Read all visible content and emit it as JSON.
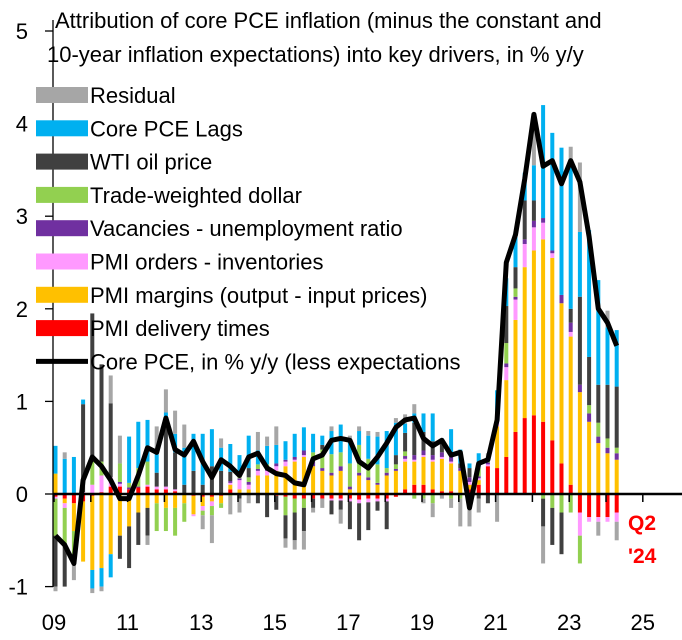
{
  "chart_data": {
    "type": "bar",
    "stacked": true,
    "title": "Attribution of core PCE inflation (minus the constant and 10-year inflation expectations) into key drivers, in % y/y",
    "title_lines": [
      "Attribution of core PCE inflation (minus the constant and",
      "10-year inflation expectations) into key drivers, in % y/y"
    ],
    "xlabel": "",
    "ylabel": "",
    "ylim": [
      -1,
      5
    ],
    "yticks": [
      "-1",
      "0",
      "1",
      "2",
      "3",
      "4",
      "5"
    ],
    "xlim": [
      2009,
      2026
    ],
    "xticks": [
      "09",
      "11",
      "13",
      "15",
      "17",
      "19",
      "21",
      "23",
      "25"
    ],
    "frequency": "quarterly",
    "start": "2009Q1",
    "end": "2024Q2",
    "grid": false,
    "legend_position": "top-left",
    "annotation": {
      "line1": "Q2",
      "line2": "'24",
      "color": "#FF0000"
    },
    "legend": [
      {
        "name": "Residual",
        "color": "#A6A6A6"
      },
      {
        "name": "Core PCE Lags",
        "color": "#00B0F0"
      },
      {
        "name": "WTI oil price",
        "color": "#404040"
      },
      {
        "name": "Trade-weighted dollar",
        "color": "#92D050"
      },
      {
        "name": "Vacancies - unemployment ratio",
        "color": "#7030A0"
      },
      {
        "name": "PMI orders - inventories",
        "color": "#FF99FF"
      },
      {
        "name": "PMI margins (output - input prices)",
        "color": "#FFC000"
      },
      {
        "name": "PMI delivery times",
        "color": "#FF0000"
      },
      {
        "name": "Core PCE, in % y/y (less expectations",
        "color": "#000000"
      }
    ],
    "stack_order": [
      "PMI delivery times",
      "PMI margins (output - input prices)",
      "PMI orders - inventories",
      "Vacancies - unemployment ratio",
      "Trade-weighted dollar",
      "WTI oil price",
      "Core PCE Lags",
      "Residual"
    ],
    "contributions_by_quarter": [
      [
        -0.03,
        0.22,
        -0.02,
        0,
        -0.4,
        -0.55,
        0.3,
        -0.05
      ],
      [
        -0.05,
        -0.05,
        -0.05,
        0,
        -0.4,
        -0.45,
        0.38,
        0.07
      ],
      [
        -0.1,
        -0.3,
        0,
        0,
        -0.25,
        -0.1,
        0.4,
        -0.18
      ],
      [
        -0.08,
        -0.65,
        0.02,
        0,
        0,
        0.95,
        0.05,
        0
      ],
      [
        -0.02,
        -0.8,
        0.1,
        0,
        0.3,
        1.55,
        -0.2,
        -0.05
      ],
      [
        0.02,
        -0.8,
        0.18,
        0,
        0.15,
        1.05,
        -0.2,
        -0.05
      ],
      [
        0.08,
        -0.65,
        0.1,
        0,
        0,
        0.8,
        -0.25,
        0.3
      ],
      [
        0.08,
        -0.45,
        0.03,
        0.02,
        0.2,
        -0.25,
        0,
        0.3
      ],
      [
        0.05,
        -0.35,
        0,
        0.02,
        0.05,
        -0.45,
        0.5,
        0
      ],
      [
        0.07,
        -0.2,
        0,
        0.01,
        0.2,
        -0.35,
        0.5,
        0
      ],
      [
        0.08,
        -0.15,
        0.02,
        0,
        0.25,
        -0.3,
        0.45,
        -0.1
      ],
      [
        0.05,
        -0.1,
        0.03,
        0,
        -0.3,
        0.15,
        0.2,
        0.3
      ],
      [
        0.05,
        -0.15,
        0.03,
        0,
        -0.25,
        0.75,
        0.05,
        0.25
      ],
      [
        0.03,
        -0.15,
        0.02,
        0,
        -0.3,
        0.4,
        0.2,
        0.25
      ],
      [
        0,
        -0.1,
        0,
        0,
        -0.2,
        0.1,
        0.4,
        0.25
      ],
      [
        -0.02,
        -0.2,
        -0.02,
        0,
        0,
        0.25,
        0.4,
        0
      ],
      [
        -0.03,
        -0.1,
        -0.05,
        0,
        -0.05,
        0.1,
        0.55,
        -0.15
      ],
      [
        -0.03,
        -0.05,
        -0.05,
        0,
        -0.1,
        0.3,
        0.4,
        -0.3
      ],
      [
        -0.02,
        -0.08,
        0,
        0,
        -0.05,
        0.25,
        0.25,
        0.1
      ],
      [
        0.05,
        0.05,
        0.02,
        0.02,
        -0.02,
        0.1,
        0.3,
        -0.2
      ],
      [
        0,
        0.05,
        0.1,
        0.02,
        0.05,
        -0.05,
        0.2,
        -0.15
      ],
      [
        0,
        0.05,
        0.05,
        0.03,
        0.05,
        0.1,
        0.35,
        -0.1
      ],
      [
        0,
        0.2,
        0.05,
        0.02,
        0.05,
        -0.1,
        0.15,
        0.2
      ],
      [
        0,
        0.2,
        0.05,
        0.02,
        0.05,
        -0.25,
        0.2,
        0.1
      ],
      [
        -0.02,
        0.25,
        0.05,
        0.03,
        0,
        -0.15,
        0.2,
        0.2
      ],
      [
        -0.03,
        0.3,
        0.05,
        0.02,
        -0.2,
        -0.25,
        0.2,
        -0.1
      ],
      [
        -0.05,
        0.35,
        0.02,
        0.03,
        -0.15,
        -0.3,
        0.25,
        -0.1
      ],
      [
        -0.05,
        0.4,
        0.02,
        0.05,
        -0.1,
        -0.25,
        0.25,
        -0.2
      ],
      [
        -0.05,
        0.3,
        0,
        0.05,
        0.1,
        -0.1,
        0.2,
        -0.05
      ],
      [
        -0.05,
        0.25,
        0,
        0.03,
        0.2,
        0.05,
        0.1,
        -0.1
      ],
      [
        -0.05,
        0.2,
        -0.02,
        0.03,
        0.2,
        -0.15,
        0.25,
        0.05
      ],
      [
        -0.05,
        0.25,
        -0.02,
        0.05,
        0.15,
        -0.1,
        0.3,
        -0.15
      ],
      [
        -0.05,
        0.05,
        -0.03,
        0.03,
        0.25,
        -0.3,
        0.25,
        0.05
      ],
      [
        -0.06,
        0.2,
        -0.04,
        0.03,
        0.3,
        -0.4,
        0.15,
        0.05
      ],
      [
        -0.05,
        0.15,
        -0.04,
        0.03,
        0.2,
        -0.3,
        0.25,
        0.05
      ],
      [
        -0.05,
        0.1,
        -0.03,
        0.02,
        0.2,
        -0.1,
        0.3,
        0.05
      ],
      [
        -0.05,
        0.2,
        -0.03,
        0.03,
        0.05,
        -0.3,
        0.4,
        0
      ],
      [
        -0.03,
        0.25,
        0,
        0.02,
        0.05,
        0.1,
        0.35,
        0.05
      ],
      [
        0.05,
        0.3,
        0.03,
        0.03,
        0.05,
        0.2,
        0.1,
        0.1
      ],
      [
        0.1,
        0.25,
        0.02,
        0.05,
        -0.05,
        0.35,
        0.1,
        0.1
      ],
      [
        0.1,
        0.3,
        0.02,
        0.05,
        -0.05,
        0.2,
        0.2,
        -0.05
      ],
      [
        0.05,
        0.3,
        0.02,
        0.05,
        -0.1,
        0.15,
        0.3,
        -0.15
      ],
      [
        0.03,
        0.35,
        0.02,
        0.05,
        0,
        0.1,
        0.05,
        -0.05
      ],
      [
        0.03,
        0.3,
        0.02,
        0.05,
        -0.05,
        0.05,
        0.25,
        -0.1
      ],
      [
        0,
        0.25,
        0,
        0.03,
        -0.05,
        0.05,
        0.15,
        -0.3
      ],
      [
        0.05,
        0.05,
        0.03,
        0.05,
        -0.05,
        0.1,
        0.05,
        -0.3
      ],
      [
        0.1,
        0.05,
        0.02,
        0.02,
        0.1,
        -0.05,
        0.15,
        -0.15
      ],
      [
        0.3,
        0,
        0.02,
        0.02,
        0.05,
        -0.1,
        0,
        0.05
      ],
      [
        0.28,
        0.45,
        0.05,
        0.04,
        0.05,
        0,
        0.25,
        -0.3
      ],
      [
        0.4,
        0.83,
        0.14,
        0.04,
        0.22,
        0.4,
        0.3,
        0
      ],
      [
        0.67,
        1.21,
        0.22,
        0.03,
        0.09,
        0.23,
        0.35,
        0
      ],
      [
        0.82,
        1.63,
        0.25,
        0.05,
        0,
        0.42,
        0.3,
        0
      ],
      [
        0.85,
        1.78,
        0.25,
        0.07,
        0,
        0.22,
        0.38,
        0.57
      ],
      [
        0.78,
        1.97,
        0.18,
        0.05,
        -0.05,
        -0.3,
        1.22,
        -0.4
      ],
      [
        0.58,
        1.97,
        0.05,
        0.03,
        -0.15,
        -0.4,
        1.27,
        0
      ],
      [
        0.33,
        1.73,
        0,
        0.09,
        -0.2,
        -0.45,
        1.59,
        0
      ],
      [
        0.1,
        1.6,
        0.05,
        0.1,
        -0.2,
        0.15,
        1.55,
        0.2
      ],
      [
        -0.2,
        1.1,
        -0.25,
        0.08,
        -0.3,
        0.95,
        0.7,
        0.75
      ],
      [
        -0.25,
        0.78,
        -0.05,
        0.09,
        0.09,
        0.52,
        1.37,
        0
      ],
      [
        -0.25,
        0.55,
        -0.05,
        0.07,
        0.15,
        0.41,
        1.13,
        -0.15
      ],
      [
        -0.25,
        0.44,
        -0.05,
        0.06,
        0.1,
        0.58,
        0.62,
        0.18
      ],
      [
        -0.2,
        0.37,
        -0.1,
        0.07,
        0.06,
        0.66,
        0.61,
        -0.2
      ]
    ],
    "line": {
      "name": "Core PCE, in % y/y (less expectations",
      "values": [
        -0.45,
        -0.55,
        -0.75,
        0.15,
        0.4,
        0.3,
        0.15,
        -0.05,
        -0.05,
        0.2,
        0.5,
        0.45,
        0.82,
        0.48,
        0.42,
        0.57,
        0.35,
        0.18,
        0.37,
        0.3,
        0.2,
        0.4,
        0.44,
        0.28,
        0.22,
        0.2,
        0.12,
        0.1,
        0.38,
        0.42,
        0.58,
        0.6,
        0.58,
        0.35,
        0.28,
        0.4,
        0.55,
        0.72,
        0.8,
        0.82,
        0.6,
        0.52,
        0.58,
        0.42,
        0.45,
        -0.15,
        0.33,
        0.37,
        0.8,
        2.5,
        2.8,
        3.4,
        4.1,
        3.54,
        3.6,
        3.35,
        3.6,
        3.37,
        2.78,
        2.0,
        1.85,
        1.6
      ]
    }
  }
}
